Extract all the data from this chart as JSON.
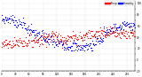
{
  "blue_color": "#0000ff",
  "red_color": "#ff0000",
  "bg_color": "#ffffff",
  "grid_color": "#bbbbbb",
  "ylim": [
    -20,
    105
  ],
  "xlim": [
    0,
    288
  ],
  "dot_size": 0.8,
  "legend_temp_label": "Temp",
  "legend_humidity_label": "Humidity",
  "humidity_segments": [
    {
      "start": 0,
      "end": 30,
      "mean": 72,
      "std": 4
    },
    {
      "start": 30,
      "end": 50,
      "mean": 65,
      "std": 4
    },
    {
      "start": 50,
      "end": 70,
      "mean": 55,
      "std": 5
    },
    {
      "start": 70,
      "end": 90,
      "mean": 45,
      "std": 5
    },
    {
      "start": 90,
      "end": 110,
      "mean": 35,
      "std": 5
    },
    {
      "start": 110,
      "end": 140,
      "mean": 30,
      "std": 6
    },
    {
      "start": 140,
      "end": 160,
      "mean": 25,
      "std": 5
    },
    {
      "start": 160,
      "end": 180,
      "mean": 22,
      "std": 4
    },
    {
      "start": 180,
      "end": 200,
      "mean": 25,
      "std": 4
    },
    {
      "start": 200,
      "end": 220,
      "mean": 35,
      "std": 5
    },
    {
      "start": 220,
      "end": 240,
      "mean": 50,
      "std": 5
    },
    {
      "start": 240,
      "end": 260,
      "mean": 58,
      "std": 4
    },
    {
      "start": 260,
      "end": 288,
      "mean": 62,
      "std": 4
    }
  ],
  "temp_segments": [
    {
      "start": 0,
      "end": 30,
      "mean": 28,
      "std": 4
    },
    {
      "start": 30,
      "end": 60,
      "mean": 32,
      "std": 5
    },
    {
      "start": 60,
      "end": 90,
      "mean": 35,
      "std": 5
    },
    {
      "start": 90,
      "end": 120,
      "mean": 42,
      "std": 6
    },
    {
      "start": 120,
      "end": 150,
      "mean": 38,
      "std": 6
    },
    {
      "start": 150,
      "end": 180,
      "mean": 40,
      "std": 5
    },
    {
      "start": 180,
      "end": 210,
      "mean": 45,
      "std": 6
    },
    {
      "start": 210,
      "end": 240,
      "mean": 50,
      "std": 5
    },
    {
      "start": 240,
      "end": 270,
      "mean": 48,
      "std": 5
    },
    {
      "start": 270,
      "end": 288,
      "mean": 45,
      "std": 5
    }
  ],
  "yticks": [
    -20,
    -10,
    0,
    10,
    20,
    30,
    40,
    50,
    60,
    70,
    80,
    90,
    100
  ],
  "ytick_labels": [
    "-20",
    "",
    "0",
    "",
    "20",
    "",
    "40",
    "",
    "60",
    "",
    "80",
    "",
    "100"
  ],
  "xtick_step": 5,
  "xtick_label_step": 30
}
